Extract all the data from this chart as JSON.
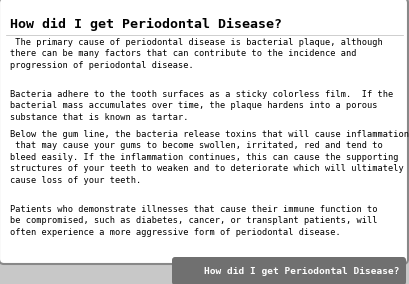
{
  "title": "How did I get Periodontal Disease?",
  "title_fontsize": 9.5,
  "title_color": "#000000",
  "body_fontsize": 6.2,
  "body_color": "#000000",
  "paragraphs": [
    " The primary cause of periodontal disease is bacterial plaque, although\nthere can be many factors that can contribute to the incidence and\nprogression of periodontal disease.",
    "Bacteria adhere to the tooth surfaces as a sticky colorless film.  If the\nbacterial mass accumulates over time, the plaque hardens into a porous\nsubstance that is known as tartar.",
    "Below the gum line, the bacteria release toxins that will cause inflammation\n that may cause your gums to become swollen, irritated, red and tend to\nbleed easily. If the inflammation continues, this can cause the supporting\nstructures of your teeth to weaken and to deteriorate which will ultimately\ncause loss of your teeth.",
    "Patients who demonstrate illnesses that cause their immune function to\nbe compromised, such as diabetes, cancer, or transplant patients, will\noften experience a more aggressive form of periodontal disease."
  ],
  "footer_text": "How did I get Periodontal Disease?",
  "footer_bg": "#707070",
  "footer_color": "#ffffff",
  "footer_fontsize": 6.8,
  "bg_color": "#ffffff",
  "border_color": "#888888",
  "outer_bg": "#c8c8c8"
}
